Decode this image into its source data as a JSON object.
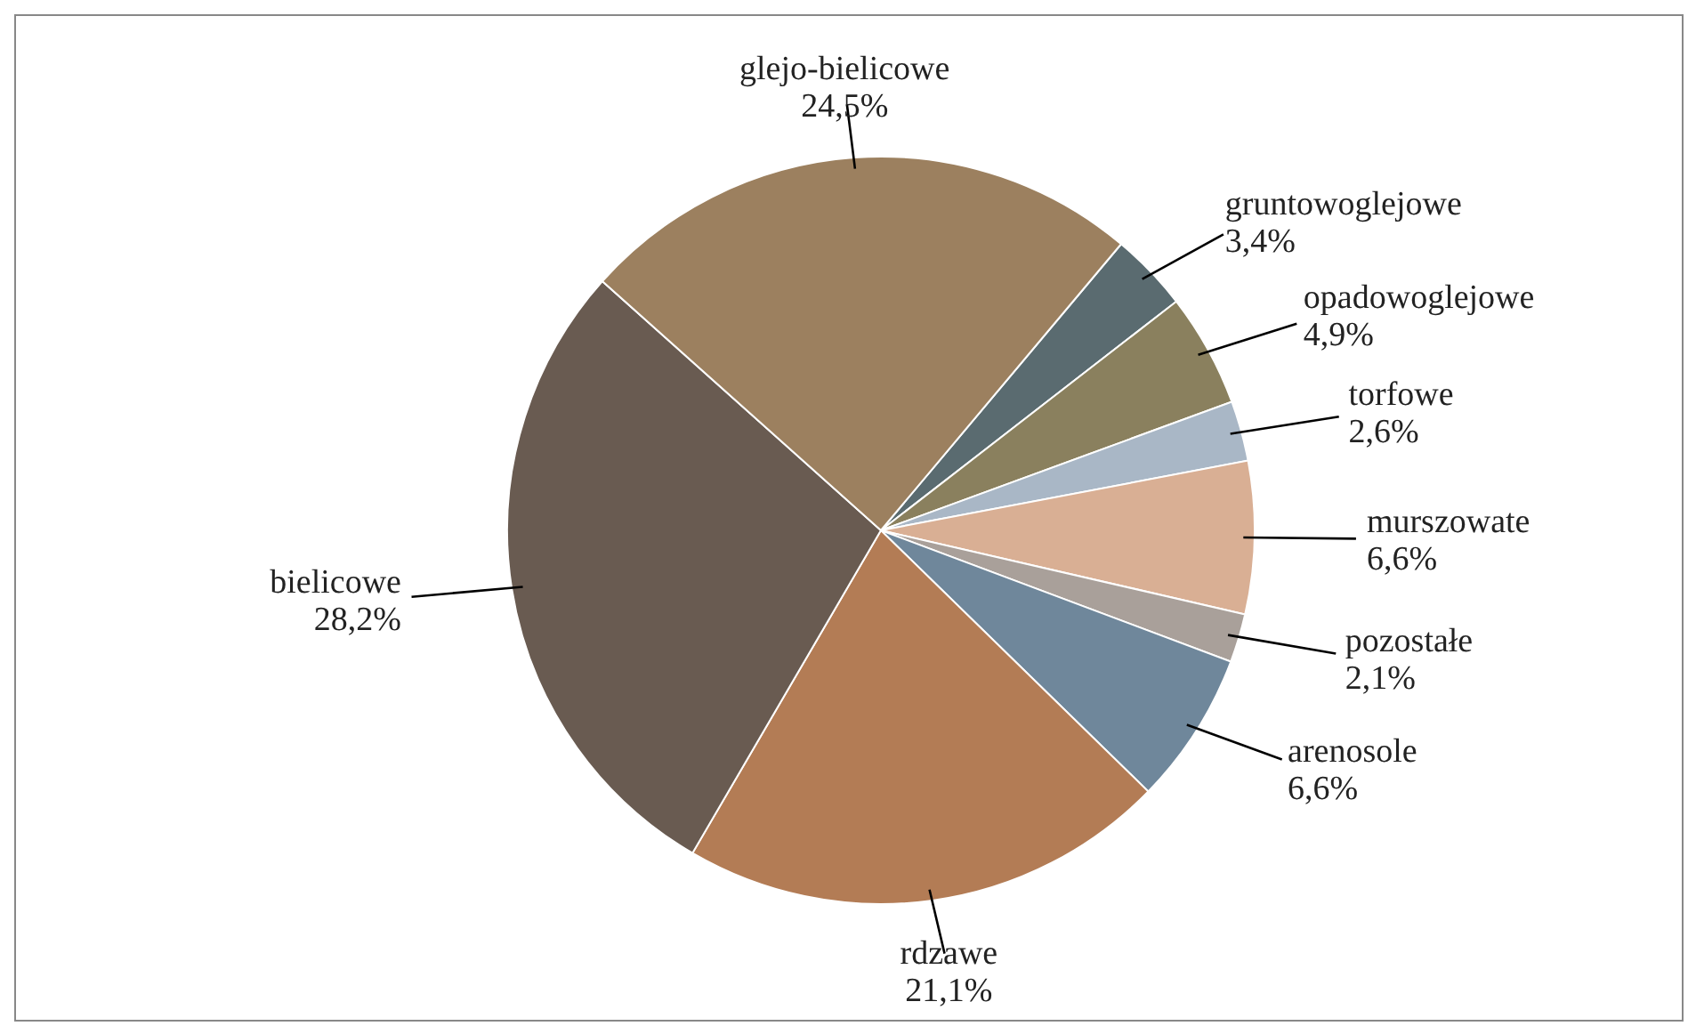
{
  "chart_data": {
    "type": "pie",
    "categories": [
      "gruntowoglejowe",
      "opadowoglejowe",
      "torfowe",
      "murszowate",
      "pozostałe",
      "arenosole",
      "rdzawe",
      "bielicowe",
      "glejo-bielicowe"
    ],
    "values": [
      3.4,
      4.9,
      2.6,
      6.6,
      2.1,
      6.6,
      21.1,
      28.2,
      24.5
    ],
    "value_labels": [
      "3,4%",
      "4,9%",
      "2,6%",
      "6,6%",
      "2,1%",
      "6,6%",
      "21,1%",
      "28,2%",
      "24,5%"
    ],
    "colors": [
      "#5a6b70",
      "#8a805e",
      "#a9b7c6",
      "#d9af94",
      "#a9a09a",
      "#6f879b",
      "#b37c55",
      "#695b51",
      "#9c805f"
    ]
  }
}
